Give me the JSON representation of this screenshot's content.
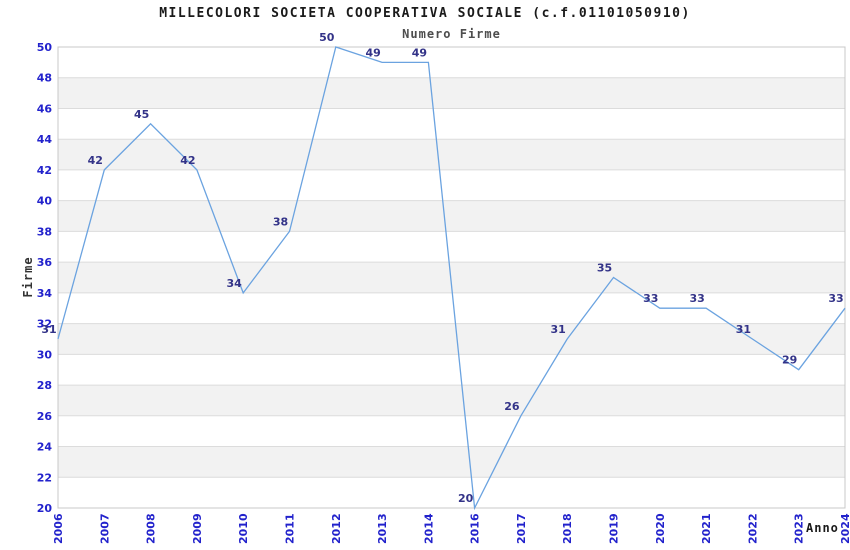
{
  "chart_data": {
    "type": "line",
    "title": "MILLECOLORI SOCIETA COOPERATIVA SOCIALE (c.f.01101050910)",
    "subtitle": "Numero Firme",
    "xlabel": "Anno",
    "ylabel": "Firme",
    "categories": [
      "2006",
      "2007",
      "2008",
      "2009",
      "2010",
      "2011",
      "2012",
      "2013",
      "2014",
      "2016",
      "2017",
      "2018",
      "2019",
      "2020",
      "2021",
      "2022",
      "2023",
      "2024"
    ],
    "values": [
      31,
      42,
      45,
      42,
      34,
      38,
      50,
      49,
      49,
      20,
      26,
      31,
      35,
      33,
      33,
      31,
      29,
      33
    ],
    "ylim": [
      20,
      50
    ],
    "ytick_step": 2,
    "grid": "horizontal-bands-alternating",
    "legend": "none",
    "colors": {
      "line": "#6ba3e0",
      "tick_label": "#2222cc",
      "data_label": "#333388",
      "band": "#f2f2f2",
      "gridline": "#dcdcdc",
      "border": "#c8c8c8",
      "title": "#1a1a1a",
      "subtitle": "#4d4d4d"
    }
  }
}
